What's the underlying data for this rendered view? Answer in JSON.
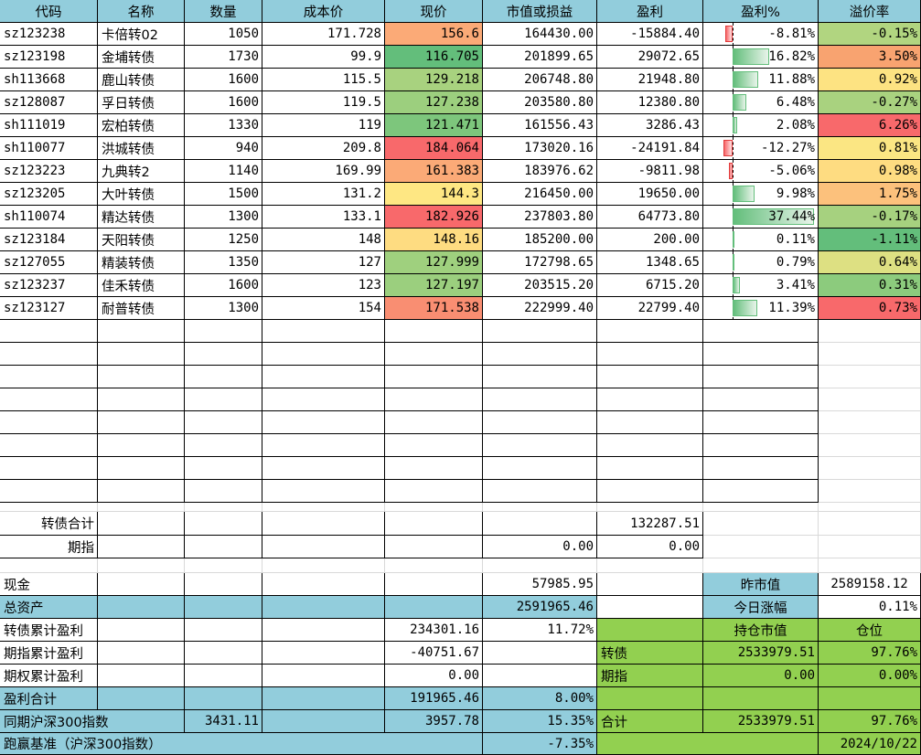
{
  "headers": [
    "代码",
    "名称",
    "数量",
    "成本价",
    "现价",
    "市值或损益",
    "盈利",
    "盈利%",
    "溢价率"
  ],
  "holdings": [
    {
      "code": "sz123238",
      "name": "卡倍转02",
      "qty": "1050",
      "cost": "171.728",
      "price": "156.6",
      "market_value": "164430.00",
      "profit": "-15884.40",
      "profit_pct": "-8.81%",
      "premium": "-0.15%",
      "profit_pct_value": -8.81,
      "price_color": "#fbaa77",
      "premium_color": "#b1d580"
    },
    {
      "code": "sz123198",
      "name": "金埔转债",
      "qty": "1730",
      "cost": "99.9",
      "price": "116.705",
      "market_value": "201899.65",
      "profit": "29072.65",
      "profit_pct": "16.82%",
      "premium": "3.50%",
      "profit_pct_value": 16.82,
      "price_color": "#63be7b",
      "premium_color": "#f8a370"
    },
    {
      "code": "sh113668",
      "name": "鹿山转债",
      "qty": "1600",
      "cost": "115.5",
      "price": "129.218",
      "market_value": "206748.80",
      "profit": "21948.80",
      "profit_pct": "11.88%",
      "premium": "0.92%",
      "profit_pct_value": 11.88,
      "price_color": "#a8d27f",
      "premium_color": "#fde382"
    },
    {
      "code": "sz128087",
      "name": "孚日转债",
      "qty": "1600",
      "cost": "119.5",
      "price": "127.238",
      "market_value": "203580.80",
      "profit": "12380.80",
      "profit_pct": "6.48%",
      "premium": "-0.27%",
      "profit_pct_value": 6.48,
      "price_color": "#9ccf7e",
      "premium_color": "#a9d27f"
    },
    {
      "code": "sh111019",
      "name": "宏柏转债",
      "qty": "1330",
      "cost": "119",
      "price": "121.471",
      "market_value": "161556.43",
      "profit": "3286.43",
      "profit_pct": "2.08%",
      "premium": "6.26%",
      "profit_pct_value": 2.08,
      "price_color": "#7dc67c",
      "premium_color": "#f8696b"
    },
    {
      "code": "sh110077",
      "name": "洪城转债",
      "qty": "940",
      "cost": "209.8",
      "price": "184.064",
      "market_value": "173020.16",
      "profit": "-24191.84",
      "profit_pct": "-12.27%",
      "premium": "0.81%",
      "profit_pct_value": -12.27,
      "price_color": "#f8696b",
      "premium_color": "#fbe683"
    },
    {
      "code": "sz123223",
      "name": "九典转2",
      "qty": "1140",
      "cost": "169.99",
      "price": "161.383",
      "market_value": "183976.62",
      "profit": "-9811.98",
      "profit_pct": "-5.06%",
      "premium": "0.98%",
      "profit_pct_value": -5.06,
      "price_color": "#fbaa77",
      "premium_color": "#fedc81"
    },
    {
      "code": "sz123205",
      "name": "大叶转债",
      "qty": "1500",
      "cost": "131.2",
      "price": "144.3",
      "market_value": "216450.00",
      "profit": "19650.00",
      "profit_pct": "9.98%",
      "premium": "1.75%",
      "profit_pct_value": 9.98,
      "price_color": "#fee783",
      "premium_color": "#fcc17c"
    },
    {
      "code": "sh110074",
      "name": "精达转债",
      "qty": "1300",
      "cost": "133.1",
      "price": "182.926",
      "market_value": "237803.80",
      "profit": "64773.80",
      "profit_pct": "37.44%",
      "premium": "-0.17%",
      "profit_pct_value": 37.44,
      "price_color": "#f8696b",
      "premium_color": "#a6d17f"
    },
    {
      "code": "sz123184",
      "name": "天阳转债",
      "qty": "1250",
      "cost": "148",
      "price": "148.16",
      "market_value": "185200.00",
      "profit": "200.00",
      "profit_pct": "0.11%",
      "premium": "-1.11%",
      "profit_pct_value": 0.11,
      "price_color": "#fedc81",
      "premium_color": "#63be7b"
    },
    {
      "code": "sz127055",
      "name": "精装转债",
      "qty": "1350",
      "cost": "127",
      "price": "127.999",
      "market_value": "172798.65",
      "profit": "1348.65",
      "profit_pct": "0.79%",
      "premium": "0.64%",
      "profit_pct_value": 0.79,
      "price_color": "#9fd07e",
      "premium_color": "#dde082"
    },
    {
      "code": "sz123237",
      "name": "佳禾转债",
      "qty": "1600",
      "cost": "123",
      "price": "127.197",
      "market_value": "203515.20",
      "profit": "6715.20",
      "profit_pct": "3.41%",
      "premium": "0.31%",
      "profit_pct_value": 3.41,
      "price_color": "#9bcf7e",
      "premium_color": "#8ccb7d"
    },
    {
      "code": "sz123127",
      "name": "耐普转债",
      "qty": "1300",
      "cost": "154",
      "price": "171.538",
      "market_value": "222999.40",
      "profit": "22799.40",
      "profit_pct": "11.39%",
      "premium": "0.73%",
      "profit_pct_value": 11.39,
      "price_color": "#f98e72",
      "premium_color": "#f8696b"
    }
  ],
  "subtotals": {
    "bond_label": "转债合计",
    "bond_profit": "132287.51",
    "futures_label": "期指",
    "futures_value": "0.00",
    "futures_profit": "0.00"
  },
  "summary": {
    "cash_label": "现金",
    "cash_value": "57985.95",
    "total_assets_label": "总资产",
    "total_assets_value": "2591965.46",
    "bond_cum_label": "转债累计盈利",
    "bond_cum_value": "234301.16",
    "bond_cum_pct": "11.72%",
    "futures_cum_label": "期指累计盈利",
    "futures_cum_value": "-40751.67",
    "options_cum_label": "期权累计盈利",
    "options_cum_value": "0.00",
    "profit_total_label": "盈利合计",
    "profit_total_value": "191965.46",
    "profit_total_pct": "8.00%",
    "csi300_label": "同期沪深300指数",
    "csi300_start": "3431.11",
    "csi300_now": "3957.78",
    "csi300_pct": "15.35%",
    "benchmark_label": "跑赢基准（沪深300指数）",
    "benchmark_pct": "-7.35%"
  },
  "right_panel": {
    "prev_value_label": "昨市值",
    "prev_value": "2589158.12",
    "today_change_label": "今日涨幅",
    "today_change": "0.11%",
    "position_value_label": "持仓市值",
    "position_ratio_label": "仓位",
    "bond_label": "转债",
    "bond_position_value": "2533979.51",
    "bond_position_ratio": "97.76%",
    "futures_label": "期指",
    "futures_position_value": "0.00",
    "futures_position_ratio": "0.00%",
    "total_label": "合计",
    "total_position_value": "2533979.51",
    "total_position_ratio": "97.76%",
    "date": "2024/10/22"
  },
  "colors": {
    "header_fill": "#92cddc",
    "summary_fill": "#92d050",
    "positive_bar": "#63be7b",
    "negative_bar": "#f8696b"
  }
}
